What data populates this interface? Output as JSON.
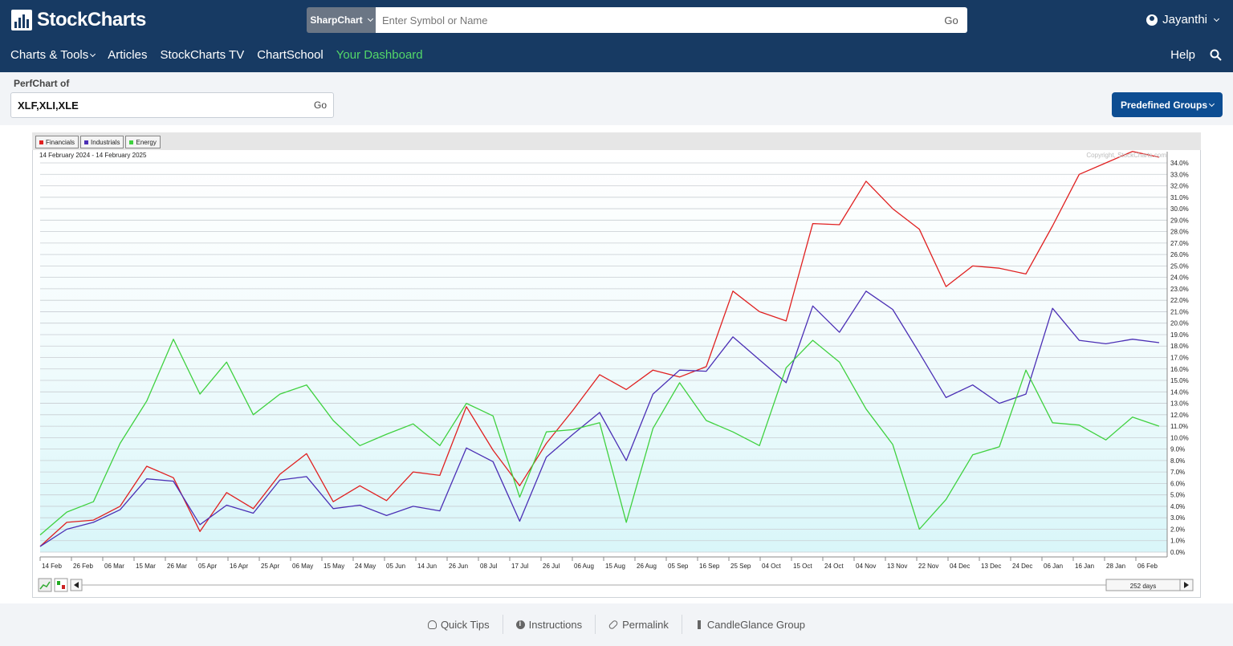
{
  "header": {
    "logo_text": "StockCharts",
    "search_mode": "SharpChart",
    "search_placeholder": "Enter Symbol or Name",
    "search_go": "Go",
    "user_name": "Jayanthi"
  },
  "nav": {
    "items": [
      "Charts & Tools",
      "Articles",
      "StockCharts TV",
      "ChartSchool",
      "Your Dashboard"
    ],
    "help": "Help"
  },
  "perfchart": {
    "label": "PerfChart of",
    "symbols": "XLF,XLI,XLE",
    "go": "Go",
    "predefined_button": "Predefined Groups"
  },
  "chart_data": {
    "type": "line",
    "date_range": "14 February 2024 - 14 February 2025",
    "copyright": "Copyright, StockCharts.com",
    "y_unit": "%",
    "ylim": [
      0,
      34
    ],
    "x_labels": [
      "14 Feb",
      "26 Feb",
      "06 Mar",
      "15 Mar",
      "26 Mar",
      "05 Apr",
      "16 Apr",
      "25 Apr",
      "06 May",
      "15 May",
      "24 May",
      "05 Jun",
      "14 Jun",
      "26 Jun",
      "08 Jul",
      "17 Jul",
      "26 Jul",
      "06 Aug",
      "15 Aug",
      "26 Aug",
      "05 Sep",
      "16 Sep",
      "25 Sep",
      "04 Oct",
      "15 Oct",
      "24 Oct",
      "04 Nov",
      "13 Nov",
      "22 Nov",
      "04 Dec",
      "13 Dec",
      "24 Dec",
      "06 Jan",
      "16 Jan",
      "28 Jan",
      "06 Feb"
    ],
    "series": [
      {
        "name": "Financials",
        "color": "#e02020",
        "values": [
          0.5,
          2.6,
          2.8,
          4.0,
          7.5,
          6.5,
          1.8,
          5.2,
          3.8,
          6.8,
          8.6,
          4.4,
          5.8,
          4.5,
          7.0,
          6.7,
          12.7,
          8.9,
          5.8,
          9.5,
          12.4,
          15.5,
          14.2,
          15.9,
          15.3,
          16.2,
          22.8,
          21.0,
          20.2,
          28.7,
          28.6,
          32.4,
          30.0,
          28.2,
          23.2,
          25.0,
          24.8,
          24.3,
          28.5,
          33.0,
          34.0,
          35.0,
          34.5
        ]
      },
      {
        "name": "Industrials",
        "color": "#4b2fb5",
        "values": [
          0.5,
          2.0,
          2.6,
          3.7,
          6.4,
          6.2,
          2.4,
          4.1,
          3.4,
          6.3,
          6.6,
          3.8,
          4.1,
          3.2,
          4.0,
          3.6,
          9.1,
          7.9,
          2.7,
          8.3,
          10.3,
          12.2,
          8.0,
          13.8,
          15.9,
          15.8,
          18.8,
          16.8,
          14.8,
          21.5,
          19.2,
          22.8,
          21.2,
          17.4,
          13.5,
          14.6,
          13.0,
          13.8,
          21.3,
          18.5,
          18.2,
          18.6,
          18.3
        ]
      },
      {
        "name": "Energy",
        "color": "#3fd13f",
        "values": [
          1.5,
          3.5,
          4.4,
          9.5,
          13.2,
          18.6,
          13.8,
          16.6,
          12.0,
          13.8,
          14.6,
          11.5,
          9.3,
          10.3,
          11.2,
          9.3,
          13.0,
          11.9,
          4.8,
          10.5,
          10.7,
          11.3,
          2.6,
          10.8,
          14.8,
          11.5,
          10.5,
          9.3,
          16.1,
          18.5,
          16.6,
          12.5,
          9.4,
          2.0,
          4.6,
          8.5,
          9.2,
          15.9,
          11.3,
          11.1,
          9.8,
          11.8,
          11.0
        ]
      }
    ]
  },
  "scroller": {
    "range_label": "252 days"
  },
  "footer": {
    "links": [
      "Quick Tips",
      "Instructions",
      "Permalink",
      "CandleGlance Group"
    ]
  }
}
